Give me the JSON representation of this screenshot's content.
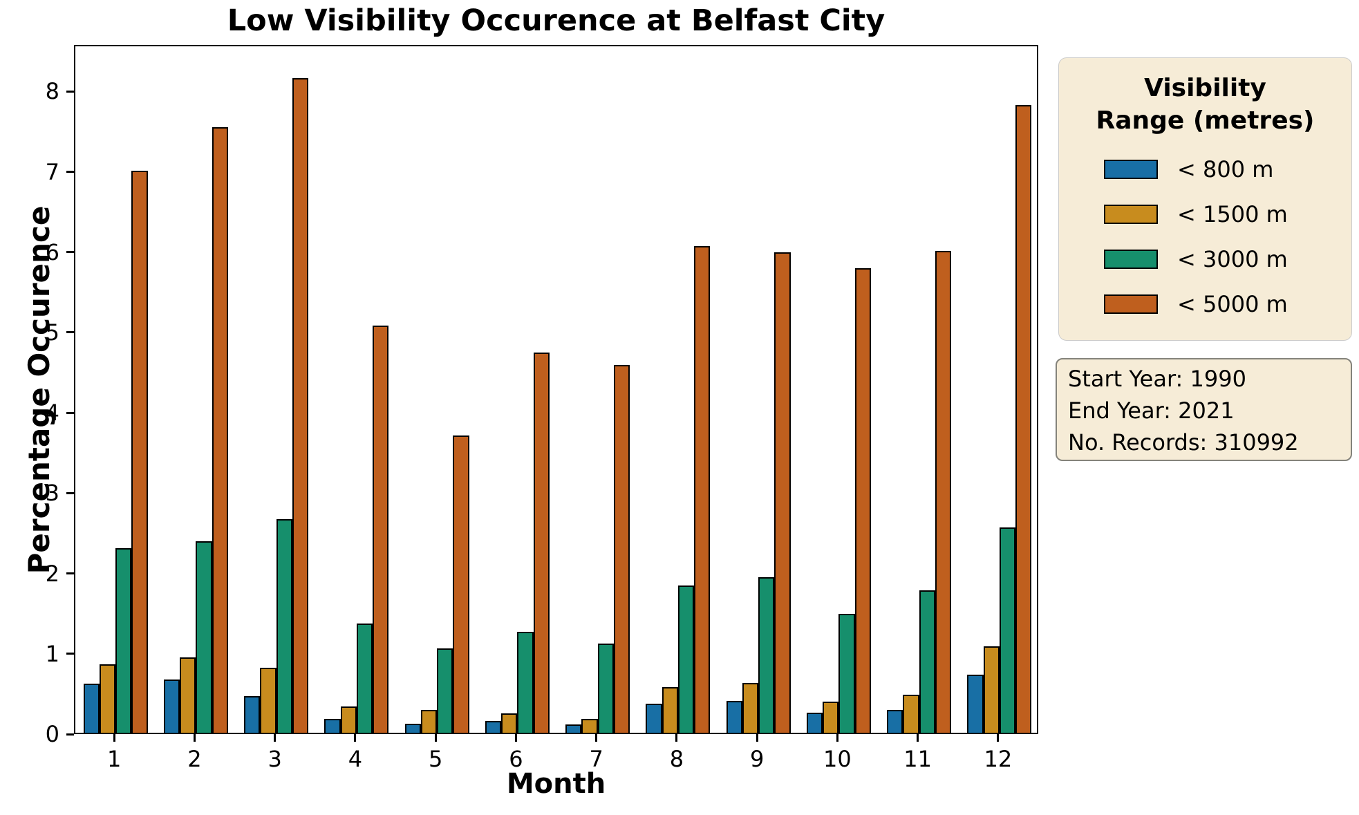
{
  "title": "Low Visibility Occurence at Belfast City",
  "axes": {
    "xlabel": "Month",
    "ylabel": "Percentage Occurence"
  },
  "legend": {
    "title_line1": "Visibility",
    "title_line2": "Range (metres)",
    "entries": [
      {
        "key": "lt-800m",
        "label": "< 800 m",
        "color": "#186fa5"
      },
      {
        "key": "lt-1500m",
        "label": "< 1500 m",
        "color": "#c88c1e"
      },
      {
        "key": "lt-3000m",
        "label": "< 3000 m",
        "color": "#168f6c"
      },
      {
        "key": "lt-5000m",
        "label": "< 5000 m",
        "color": "#bf5f1e"
      }
    ]
  },
  "info_box": {
    "start_year": "Start Year: 1990",
    "end_year": "End Year: 2021",
    "records": "No. Records: 310992"
  },
  "chart_data": {
    "type": "bar",
    "title": "Low Visibility Occurence at Belfast City",
    "xlabel": "Month",
    "ylabel": "Percentage Occurence",
    "categories": [
      1,
      2,
      3,
      4,
      5,
      6,
      7,
      8,
      9,
      10,
      11,
      12
    ],
    "series": [
      {
        "name": "< 800 m",
        "key": "lt-800m",
        "color": "#186fa5",
        "values": [
          0.61,
          0.66,
          0.46,
          0.17,
          0.11,
          0.15,
          0.1,
          0.36,
          0.4,
          0.25,
          0.28,
          0.72
        ]
      },
      {
        "name": "< 1500 m",
        "key": "lt-1500m",
        "color": "#c88c1e",
        "values": [
          0.85,
          0.94,
          0.81,
          0.33,
          0.28,
          0.24,
          0.17,
          0.57,
          0.62,
          0.39,
          0.47,
          1.08
        ]
      },
      {
        "name": "< 3000 m",
        "key": "lt-3000m",
        "color": "#168f6c",
        "values": [
          2.3,
          2.38,
          2.66,
          1.36,
          1.05,
          1.26,
          1.11,
          1.83,
          1.94,
          1.48,
          1.77,
          2.56
        ]
      },
      {
        "name": "< 5000 m",
        "key": "lt-5000m",
        "color": "#bf5f1e",
        "values": [
          7.0,
          7.54,
          8.15,
          5.07,
          3.7,
          4.73,
          4.58,
          6.06,
          5.98,
          5.78,
          6.0,
          7.81
        ]
      }
    ],
    "ylim": [
      0,
      8.58
    ],
    "yticks": [
      0,
      1,
      2,
      3,
      4,
      5,
      6,
      7,
      8
    ],
    "grid": false,
    "bar_edge_color": "#000000",
    "legend_position": "outside-right"
  }
}
